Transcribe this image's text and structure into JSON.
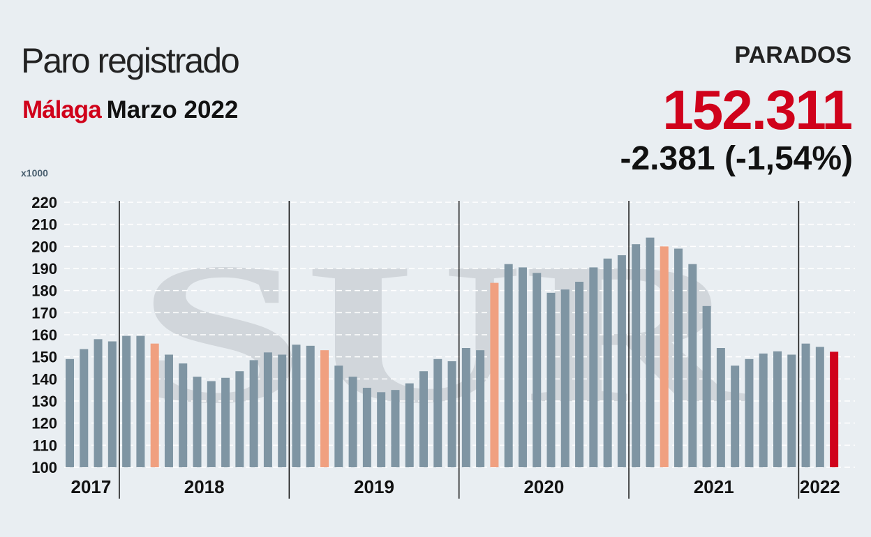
{
  "header": {
    "title": "Paro registrado",
    "city": "Málaga",
    "date": "Marzo 2022"
  },
  "kpi": {
    "label": "PARADOS",
    "value": "152.311",
    "change": "-2.381 (-1,54%)"
  },
  "watermark": "SUR",
  "colors": {
    "bar": "#7f95a3",
    "highlight_march": "#f0a080",
    "current": "#d0021b",
    "background": "#e9eef2"
  },
  "chart_data": {
    "type": "bar",
    "title": "Paro registrado",
    "ylabel": "x1000",
    "ylim": [
      100,
      220
    ],
    "yticks": [
      100,
      110,
      120,
      130,
      140,
      150,
      160,
      170,
      180,
      190,
      200,
      210,
      220
    ],
    "grid": true,
    "years": [
      {
        "label": "2017",
        "months": 4
      },
      {
        "label": "2018",
        "months": 12
      },
      {
        "label": "2019",
        "months": 12
      },
      {
        "label": "2020",
        "months": 12
      },
      {
        "label": "2021",
        "months": 12
      },
      {
        "label": "2022",
        "months": 3
      }
    ],
    "values": [
      149,
      153.5,
      158,
      157,
      159.5,
      159.5,
      156,
      151,
      147,
      141,
      139,
      140.5,
      143.5,
      148.5,
      152,
      151,
      155.5,
      155,
      153,
      146,
      141,
      136,
      134,
      135,
      138,
      143.5,
      149,
      148,
      154,
      153,
      183.5,
      192,
      190.5,
      188,
      179,
      180.5,
      184,
      190.5,
      194.5,
      196,
      201,
      204,
      200,
      199,
      192,
      173,
      154,
      146,
      149,
      151.5,
      152.5,
      151,
      156,
      154.5,
      152.3
    ],
    "highlight_indices": [
      6,
      18,
      30,
      42
    ],
    "current_index": 54
  }
}
